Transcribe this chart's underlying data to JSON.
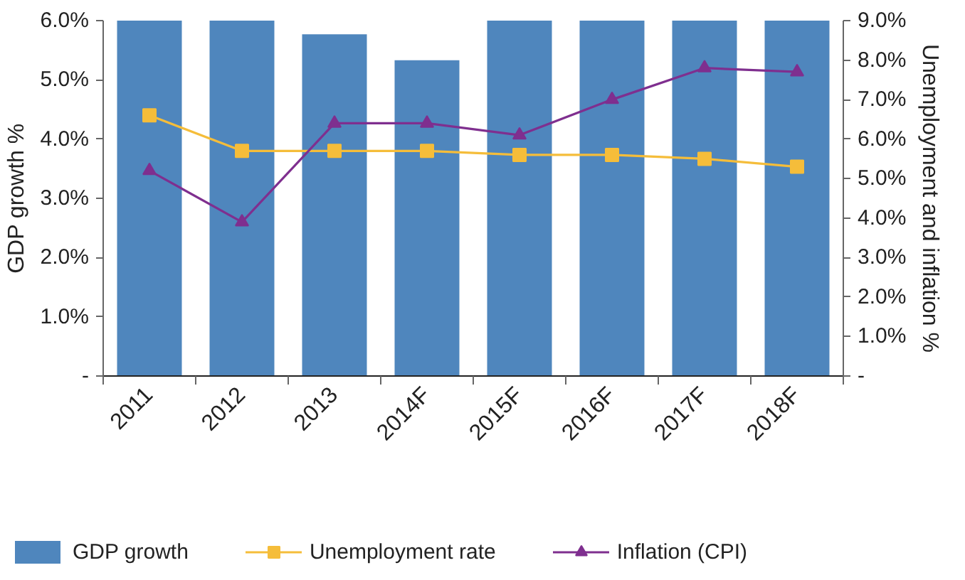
{
  "chart_data": {
    "type": "bar",
    "categories": [
      "2011",
      "2012",
      "2013",
      "2014F",
      "2015F",
      "2016F",
      "2017F",
      "2018F"
    ],
    "ylabel": "GDP growth %",
    "y2label": "Unemployment and inflation %",
    "ylim": [
      0,
      6
    ],
    "yticks": [
      {
        "value": 0,
        "label": "-"
      },
      {
        "value": 1,
        "label": "1.0%"
      },
      {
        "value": 2,
        "label": "2.0%"
      },
      {
        "value": 3,
        "label": "3.0%"
      },
      {
        "value": 4,
        "label": "4.0%"
      },
      {
        "value": 5,
        "label": "5.0%"
      },
      {
        "value": 6,
        "label": "6.0%"
      }
    ],
    "y2lim": [
      0,
      9
    ],
    "y2ticks": [
      {
        "value": 0,
        "label": "-"
      },
      {
        "value": 1,
        "label": "1.0%"
      },
      {
        "value": 2,
        "label": "2.0%"
      },
      {
        "value": 3,
        "label": "3.0%"
      },
      {
        "value": 4,
        "label": "4.0%"
      },
      {
        "value": 5,
        "label": "5.0%"
      },
      {
        "value": 6,
        "label": "6.0%"
      },
      {
        "value": 7,
        "label": "7.0%"
      },
      {
        "value": 8,
        "label": "8.0%"
      },
      {
        "value": 9,
        "label": "9.0%"
      }
    ],
    "series": [
      {
        "name": "GDP growth",
        "color": "#4f86bd",
        "values": [
          6.0,
          6.0,
          5.77,
          5.33,
          6.0,
          6.0,
          6.0,
          6.0
        ]
      },
      {
        "name": "Unemployment rate",
        "type": "line",
        "axis": "y2",
        "marker": "square",
        "color": "#f5bd3a",
        "values": [
          6.6,
          5.7,
          5.7,
          5.7,
          5.6,
          5.6,
          5.5,
          5.3
        ]
      },
      {
        "name": "Inflation (CPI)",
        "type": "line",
        "axis": "y2",
        "marker": "triangle",
        "color": "#7f2f8f",
        "values": [
          5.2,
          3.9,
          6.4,
          6.4,
          6.1,
          7.0,
          7.8,
          7.7
        ]
      }
    ],
    "grid": false,
    "legend": "bottom"
  }
}
